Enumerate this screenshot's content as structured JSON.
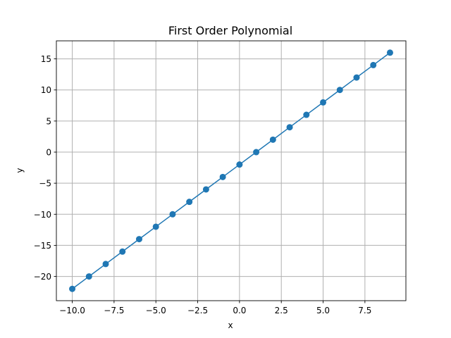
{
  "chart_data": {
    "type": "line",
    "title": "First Order Polynomial",
    "xlabel": "x",
    "ylabel": "y",
    "x": [
      -10,
      -9,
      -8,
      -7,
      -6,
      -5,
      -4,
      -3,
      -2,
      -1,
      0,
      1,
      2,
      3,
      4,
      5,
      6,
      7,
      8,
      9
    ],
    "series": [
      {
        "values": [
          -22,
          -20,
          -18,
          -16,
          -14,
          -12,
          -10,
          -8,
          -6,
          -4,
          -2,
          0,
          2,
          4,
          6,
          8,
          10,
          12,
          14,
          16
        ],
        "color": "#1f77b4",
        "marker": "circle"
      }
    ],
    "xlim": [
      -10.95,
      9.95
    ],
    "ylim": [
      -23.9,
      17.9
    ],
    "xticks": [
      -10.0,
      -7.5,
      -5.0,
      -2.5,
      0.0,
      2.5,
      5.0,
      7.5
    ],
    "xtick_labels": [
      "−10.0",
      "−7.5",
      "−5.0",
      "−2.5",
      "0.0",
      "2.5",
      "5.0",
      "7.5"
    ],
    "yticks": [
      -20,
      -15,
      -10,
      -5,
      0,
      5,
      10,
      15
    ],
    "ytick_labels": [
      "−20",
      "−15",
      "−10",
      "−5",
      "0",
      "5",
      "10",
      "15"
    ],
    "grid": true,
    "legend": "none"
  }
}
